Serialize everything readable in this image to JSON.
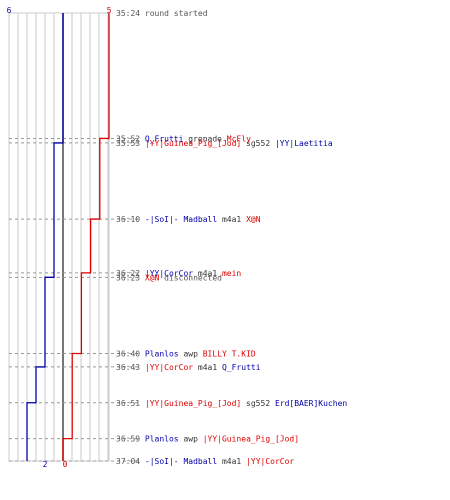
{
  "chart_data": {
    "type": "line",
    "title": "",
    "xlabel": "",
    "ylabel": "",
    "grid": true,
    "team_colors": {
      "blue": "#0000aa",
      "red": "#dd0000"
    },
    "time_color": "#555555",
    "start_counts": {
      "blue": "6",
      "red": "5"
    },
    "end_counts": {
      "blue": "2",
      "red": "0"
    },
    "series": [
      {
        "team": "blue",
        "color": "#0000aa",
        "time": [
          "35:24",
          "35:53",
          "36:23",
          "36:43",
          "36:51",
          "36:59"
        ],
        "alive": [
          6,
          5,
          4,
          3,
          2,
          2
        ]
      },
      {
        "team": "red",
        "color": "#dd0000",
        "time": [
          "35:24",
          "35:52",
          "36:10",
          "36:22",
          "36:40",
          "36:59",
          "37:04"
        ],
        "alive": [
          5,
          4,
          3,
          2,
          1,
          0,
          0
        ]
      }
    ],
    "events": [
      {
        "time": "35:24",
        "parts": [
          {
            "text": "round started",
            "color": "#555555"
          }
        ]
      },
      {
        "time": "35:52",
        "parts": [
          {
            "text": "Q_Frutti",
            "color": "#0000aa"
          },
          {
            "text": " grenade ",
            "color": "#333333"
          },
          {
            "text": "McFly",
            "color": "#dd0000"
          }
        ]
      },
      {
        "time": "35:53",
        "parts": [
          {
            "text": "|YY|Guinea_Pig_[Jod]",
            "color": "#dd0000"
          },
          {
            "text": " sg552 ",
            "color": "#333333"
          },
          {
            "text": "|YY|Laetitia",
            "color": "#0000aa"
          }
        ]
      },
      {
        "time": "36:10",
        "parts": [
          {
            "text": "-|SoI|- Madball",
            "color": "#0000aa"
          },
          {
            "text": " m4a1 ",
            "color": "#333333"
          },
          {
            "text": "X@N",
            "color": "#dd0000"
          }
        ]
      },
      {
        "time": "36:22",
        "parts": [
          {
            "text": "|YY|CorCor",
            "color": "#0000aa"
          },
          {
            "text": " m4a1 ",
            "color": "#333333"
          },
          {
            "text": "mein",
            "color": "#dd0000"
          }
        ]
      },
      {
        "time": "36:23",
        "parts": [
          {
            "text": "X@N",
            "color": "#dd0000"
          },
          {
            "text": " disconnected",
            "color": "#555555"
          }
        ]
      },
      {
        "time": "36:40",
        "parts": [
          {
            "text": "Planlos",
            "color": "#0000aa"
          },
          {
            "text": " awp ",
            "color": "#333333"
          },
          {
            "text": "BILLY T.KID",
            "color": "#dd0000"
          }
        ]
      },
      {
        "time": "36:43",
        "parts": [
          {
            "text": "|YY|CorCor",
            "color": "#dd0000"
          },
          {
            "text": " m4a1 ",
            "color": "#333333"
          },
          {
            "text": "Q_Frutti",
            "color": "#0000aa"
          }
        ]
      },
      {
        "time": "36:51",
        "parts": [
          {
            "text": "|YY|Guinea_Pig_[Jod]",
            "color": "#dd0000"
          },
          {
            "text": " sg552 ",
            "color": "#333333"
          },
          {
            "text": "Erd[BAER]Kuchen",
            "color": "#0000aa"
          }
        ]
      },
      {
        "time": "36:59",
        "parts": [
          {
            "text": "Planlos",
            "color": "#0000aa"
          },
          {
            "text": " awp ",
            "color": "#333333"
          },
          {
            "text": "|YY|Guinea_Pig_[Jod]",
            "color": "#dd0000"
          }
        ]
      },
      {
        "time": "37:04",
        "parts": [
          {
            "text": "-|SoI|- Madball",
            "color": "#0000aa"
          },
          {
            "text": " m4a1 ",
            "color": "#333333"
          },
          {
            "text": "|YY|CorCor",
            "color": "#dd0000"
          }
        ]
      }
    ]
  }
}
